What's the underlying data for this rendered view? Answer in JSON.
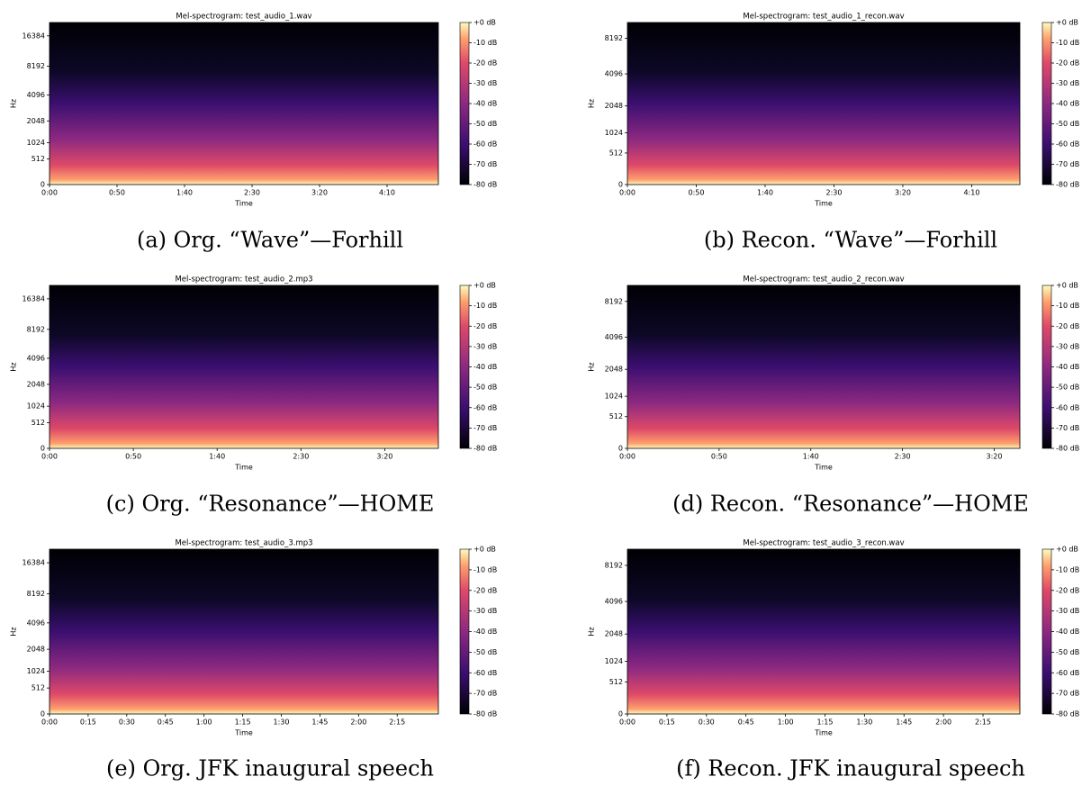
{
  "panels": [
    {
      "title": "Mel-spectrogram: test_audio_1.wav",
      "xlabel": "Time",
      "ylabel": "Hz",
      "yscale": "mel",
      "xlim": [
        0,
        288
      ],
      "xticks": [
        {
          "value": 0,
          "label": "0:00"
        },
        {
          "value": 50,
          "label": "0:50"
        },
        {
          "value": 100,
          "label": "1:40"
        },
        {
          "value": 150,
          "label": "2:30"
        },
        {
          "value": 200,
          "label": "3:20"
        },
        {
          "value": 250,
          "label": "4:10"
        }
      ],
      "ylim": [
        0,
        22050
      ],
      "yticks": [
        0,
        512,
        1024,
        2048,
        4096,
        8192,
        16384
      ],
      "clim": [
        -80,
        0
      ],
      "cticks": [
        {
          "value": 0,
          "label": "+0 dB"
        },
        {
          "value": -10,
          "label": "-10 dB"
        },
        {
          "value": -20,
          "label": "-20 dB"
        },
        {
          "value": -30,
          "label": "-30 dB"
        },
        {
          "value": -40,
          "label": "-40 dB"
        },
        {
          "value": -50,
          "label": "-50 dB"
        },
        {
          "value": -60,
          "label": "-60 dB"
        },
        {
          "value": -70,
          "label": "-70 dB"
        },
        {
          "value": -80,
          "label": "-80 dB"
        }
      ],
      "caption": "(a) Org. “Wave”—Forhill"
    },
    {
      "title": "Mel-spectrogram: test_audio_1_recon.wav",
      "xlabel": "Time",
      "ylabel": "Hz",
      "yscale": "mel",
      "xlim": [
        0,
        285
      ],
      "xticks": [
        {
          "value": 0,
          "label": "0:00"
        },
        {
          "value": 50,
          "label": "0:50"
        },
        {
          "value": 100,
          "label": "1:40"
        },
        {
          "value": 150,
          "label": "2:30"
        },
        {
          "value": 200,
          "label": "3:20"
        },
        {
          "value": 250,
          "label": "4:10"
        }
      ],
      "ylim": [
        0,
        11025
      ],
      "yticks": [
        0,
        512,
        1024,
        2048,
        4096,
        8192
      ],
      "clim": [
        -80,
        0
      ],
      "cticks": [
        {
          "value": 0,
          "label": "+0 dB"
        },
        {
          "value": -10,
          "label": "-10 dB"
        },
        {
          "value": -20,
          "label": "-20 dB"
        },
        {
          "value": -30,
          "label": "-30 dB"
        },
        {
          "value": -40,
          "label": "-40 dB"
        },
        {
          "value": -50,
          "label": "-50 dB"
        },
        {
          "value": -60,
          "label": "-60 dB"
        },
        {
          "value": -70,
          "label": "-70 dB"
        },
        {
          "value": -80,
          "label": "-80 dB"
        }
      ],
      "caption": "(b) Recon. “Wave”—Forhill"
    },
    {
      "title": "Mel-spectrogram: test_audio_2.mp3",
      "xlabel": "Time",
      "ylabel": "Hz",
      "yscale": "mel",
      "xlim": [
        0,
        232
      ],
      "xticks": [
        {
          "value": 0,
          "label": "0:00"
        },
        {
          "value": 50,
          "label": "0:50"
        },
        {
          "value": 100,
          "label": "1:40"
        },
        {
          "value": 150,
          "label": "2:30"
        },
        {
          "value": 200,
          "label": "3:20"
        }
      ],
      "ylim": [
        0,
        22050
      ],
      "yticks": [
        0,
        512,
        1024,
        2048,
        4096,
        8192,
        16384
      ],
      "clim": [
        -80,
        0
      ],
      "cticks": [
        {
          "value": 0,
          "label": "+0 dB"
        },
        {
          "value": -10,
          "label": "-10 dB"
        },
        {
          "value": -20,
          "label": "-20 dB"
        },
        {
          "value": -30,
          "label": "-30 dB"
        },
        {
          "value": -40,
          "label": "-40 dB"
        },
        {
          "value": -50,
          "label": "-50 dB"
        },
        {
          "value": -60,
          "label": "-60 dB"
        },
        {
          "value": -70,
          "label": "-70 dB"
        },
        {
          "value": -80,
          "label": "-80 dB"
        }
      ],
      "caption": "(c) Org. “Resonance”—HOME"
    },
    {
      "title": "Mel-spectrogram: test_audio_2_recon.wav",
      "xlabel": "Time",
      "ylabel": "Hz",
      "yscale": "mel",
      "xlim": [
        0,
        214
      ],
      "xticks": [
        {
          "value": 0,
          "label": "0:00"
        },
        {
          "value": 50,
          "label": "0:50"
        },
        {
          "value": 100,
          "label": "1:40"
        },
        {
          "value": 150,
          "label": "2:30"
        },
        {
          "value": 200,
          "label": "3:20"
        }
      ],
      "ylim": [
        0,
        11025
      ],
      "yticks": [
        0,
        512,
        1024,
        2048,
        4096,
        8192
      ],
      "clim": [
        -80,
        0
      ],
      "cticks": [
        {
          "value": 0,
          "label": "+0 dB"
        },
        {
          "value": -10,
          "label": "-10 dB"
        },
        {
          "value": -20,
          "label": "-20 dB"
        },
        {
          "value": -30,
          "label": "-30 dB"
        },
        {
          "value": -40,
          "label": "-40 dB"
        },
        {
          "value": -50,
          "label": "-50 dB"
        },
        {
          "value": -60,
          "label": "-60 dB"
        },
        {
          "value": -70,
          "label": "-70 dB"
        },
        {
          "value": -80,
          "label": "-80 dB"
        }
      ],
      "caption": "(d) Recon. “Resonance”—HOME"
    },
    {
      "title": "Mel-spectrogram: test_audio_3.mp3",
      "xlabel": "Time",
      "ylabel": "Hz",
      "yscale": "mel",
      "xlim": [
        0,
        151
      ],
      "xticks": [
        {
          "value": 0,
          "label": "0:00"
        },
        {
          "value": 15,
          "label": "0:15"
        },
        {
          "value": 30,
          "label": "0:30"
        },
        {
          "value": 45,
          "label": "0:45"
        },
        {
          "value": 60,
          "label": "1:00"
        },
        {
          "value": 75,
          "label": "1:15"
        },
        {
          "value": 90,
          "label": "1:30"
        },
        {
          "value": 105,
          "label": "1:45"
        },
        {
          "value": 120,
          "label": "2:00"
        },
        {
          "value": 135,
          "label": "2:15"
        }
      ],
      "ylim": [
        0,
        22050
      ],
      "yticks": [
        0,
        512,
        1024,
        2048,
        4096,
        8192,
        16384
      ],
      "clim": [
        -80,
        0
      ],
      "cticks": [
        {
          "value": 0,
          "label": "+0 dB"
        },
        {
          "value": -10,
          "label": "-10 dB"
        },
        {
          "value": -20,
          "label": "-20 dB"
        },
        {
          "value": -30,
          "label": "-30 dB"
        },
        {
          "value": -40,
          "label": "-40 dB"
        },
        {
          "value": -50,
          "label": "-50 dB"
        },
        {
          "value": -60,
          "label": "-60 dB"
        },
        {
          "value": -70,
          "label": "-70 dB"
        },
        {
          "value": -80,
          "label": "-80 dB"
        }
      ],
      "caption": "(e) Org. JFK inaugural speech"
    },
    {
      "title": "Mel-spectrogram: test_audio_3_recon.wav",
      "xlabel": "Time",
      "ylabel": "Hz",
      "yscale": "mel",
      "xlim": [
        0,
        149
      ],
      "xticks": [
        {
          "value": 0,
          "label": "0:00"
        },
        {
          "value": 15,
          "label": "0:15"
        },
        {
          "value": 30,
          "label": "0:30"
        },
        {
          "value": 45,
          "label": "0:45"
        },
        {
          "value": 60,
          "label": "1:00"
        },
        {
          "value": 75,
          "label": "1:15"
        },
        {
          "value": 90,
          "label": "1:30"
        },
        {
          "value": 105,
          "label": "1:45"
        },
        {
          "value": 120,
          "label": "2:00"
        },
        {
          "value": 135,
          "label": "2:15"
        }
      ],
      "ylim": [
        0,
        11025
      ],
      "yticks": [
        0,
        512,
        1024,
        2048,
        4096,
        8192
      ],
      "clim": [
        -80,
        0
      ],
      "cticks": [
        {
          "value": 0,
          "label": "+0 dB"
        },
        {
          "value": -10,
          "label": "-10 dB"
        },
        {
          "value": -20,
          "label": "-20 dB"
        },
        {
          "value": -30,
          "label": "-30 dB"
        },
        {
          "value": -40,
          "label": "-40 dB"
        },
        {
          "value": -50,
          "label": "-50 dB"
        },
        {
          "value": -60,
          "label": "-60 dB"
        },
        {
          "value": -70,
          "label": "-70 dB"
        },
        {
          "value": -80,
          "label": "-80 dB"
        }
      ],
      "caption": "(f) Recon. JFK inaugural speech"
    }
  ]
}
